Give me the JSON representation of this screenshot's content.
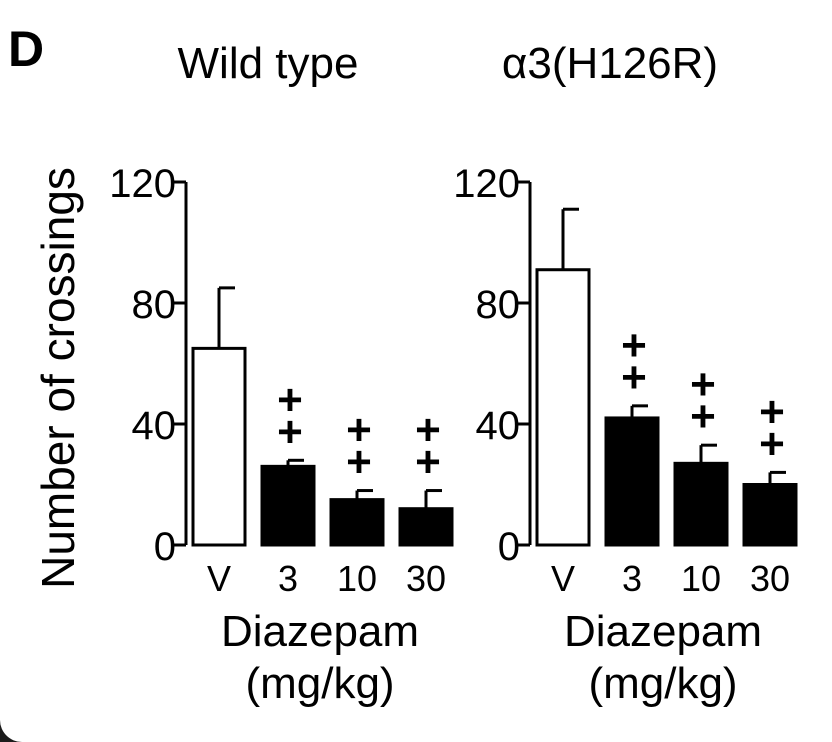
{
  "panel_label": "D",
  "ylabel": "Number of crossings",
  "chart_data": [
    {
      "type": "bar",
      "title": "Wild type",
      "categories": [
        "V",
        "3",
        "10",
        "30"
      ],
      "values": [
        65,
        26,
        15,
        12
      ],
      "errors": [
        20,
        2,
        3,
        6
      ],
      "fills": [
        "#ffffff",
        "#000000",
        "#000000",
        "#000000"
      ],
      "significance": [
        "",
        "++",
        "++",
        "++"
      ],
      "ylim": [
        0,
        120
      ],
      "yticks": [
        0,
        40,
        80,
        120
      ],
      "xlabel": "Diazepam",
      "xlabel_unit": "(mg/kg)"
    },
    {
      "type": "bar",
      "title": "α3(H126R)",
      "categories": [
        "V",
        "3",
        "10",
        "30"
      ],
      "values": [
        91,
        42,
        27,
        20
      ],
      "errors": [
        20,
        4,
        6,
        4
      ],
      "fills": [
        "#ffffff",
        "#000000",
        "#000000",
        "#000000"
      ],
      "significance": [
        "",
        "++",
        "++",
        "++"
      ],
      "ylim": [
        0,
        120
      ],
      "yticks": [
        0,
        40,
        80,
        120
      ],
      "xlabel": "Diazepam",
      "xlabel_unit": "(mg/kg)"
    }
  ]
}
